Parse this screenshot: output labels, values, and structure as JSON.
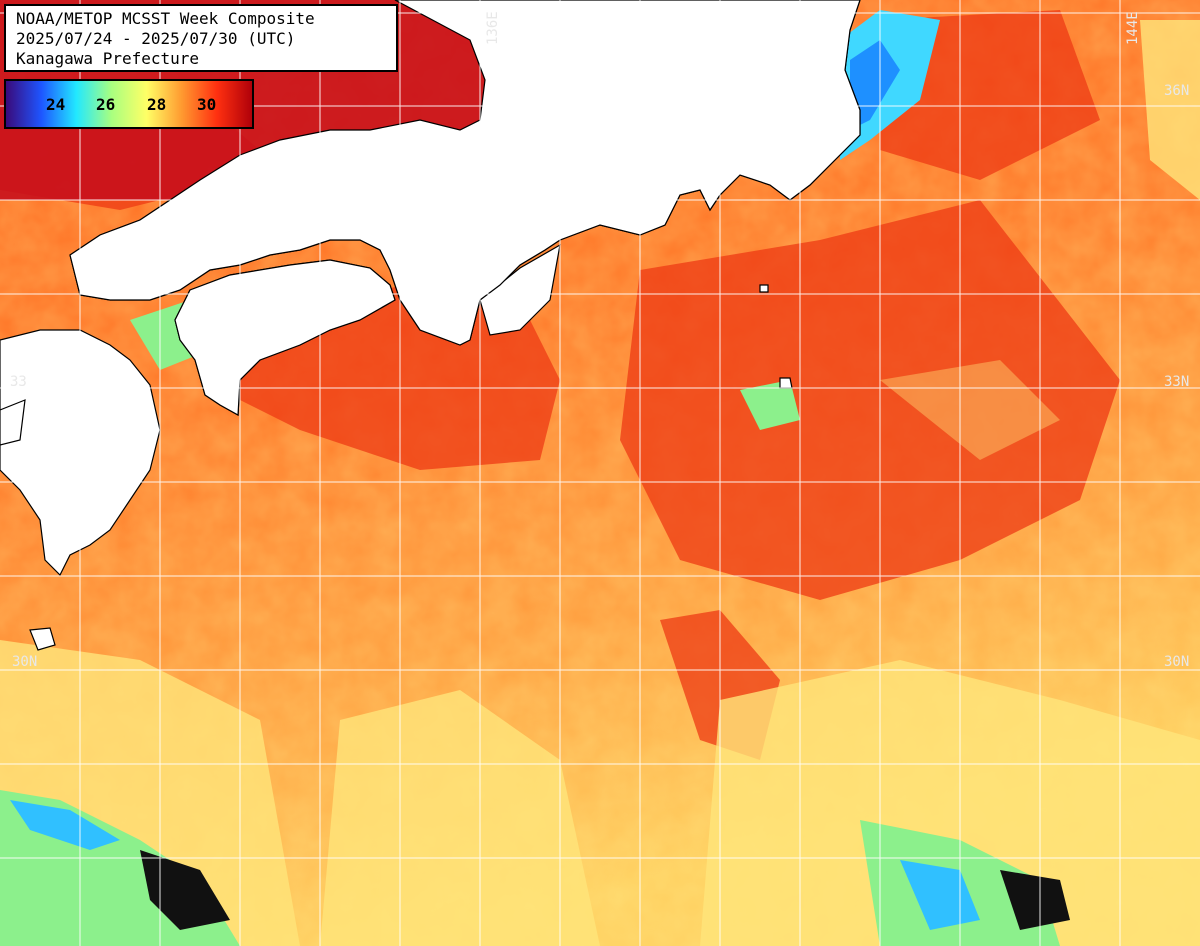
{
  "title": {
    "line1": "NOAA/METOP MCSST Week Composite",
    "line2": "2025/07/24 - 2025/07/30 (UTC)",
    "line3": "Kanagawa Prefecture"
  },
  "legend": {
    "ticks": [
      "24",
      "26",
      "28",
      "30"
    ],
    "colors": [
      "#3a0a7a",
      "#1e55ff",
      "#22e8ff",
      "#a8ff80",
      "#ffff66",
      "#ff9a30",
      "#ff3010",
      "#b0000a"
    ]
  },
  "grid_labels": {
    "lon_136": "136E",
    "lon_144": "144E",
    "lat_36_right": "36N",
    "lat_33_left": "33",
    "lat_33_right": "33N",
    "lat_30_left": "30N",
    "lat_30_right": "30N"
  },
  "colors": {
    "warm_sea": "#ff7a28",
    "hot_sea": "#f04518",
    "cool_sea": "#ffe070",
    "cold_patch": "#7ef0a0",
    "land": "#ffffff",
    "grid": "#ffffff"
  }
}
